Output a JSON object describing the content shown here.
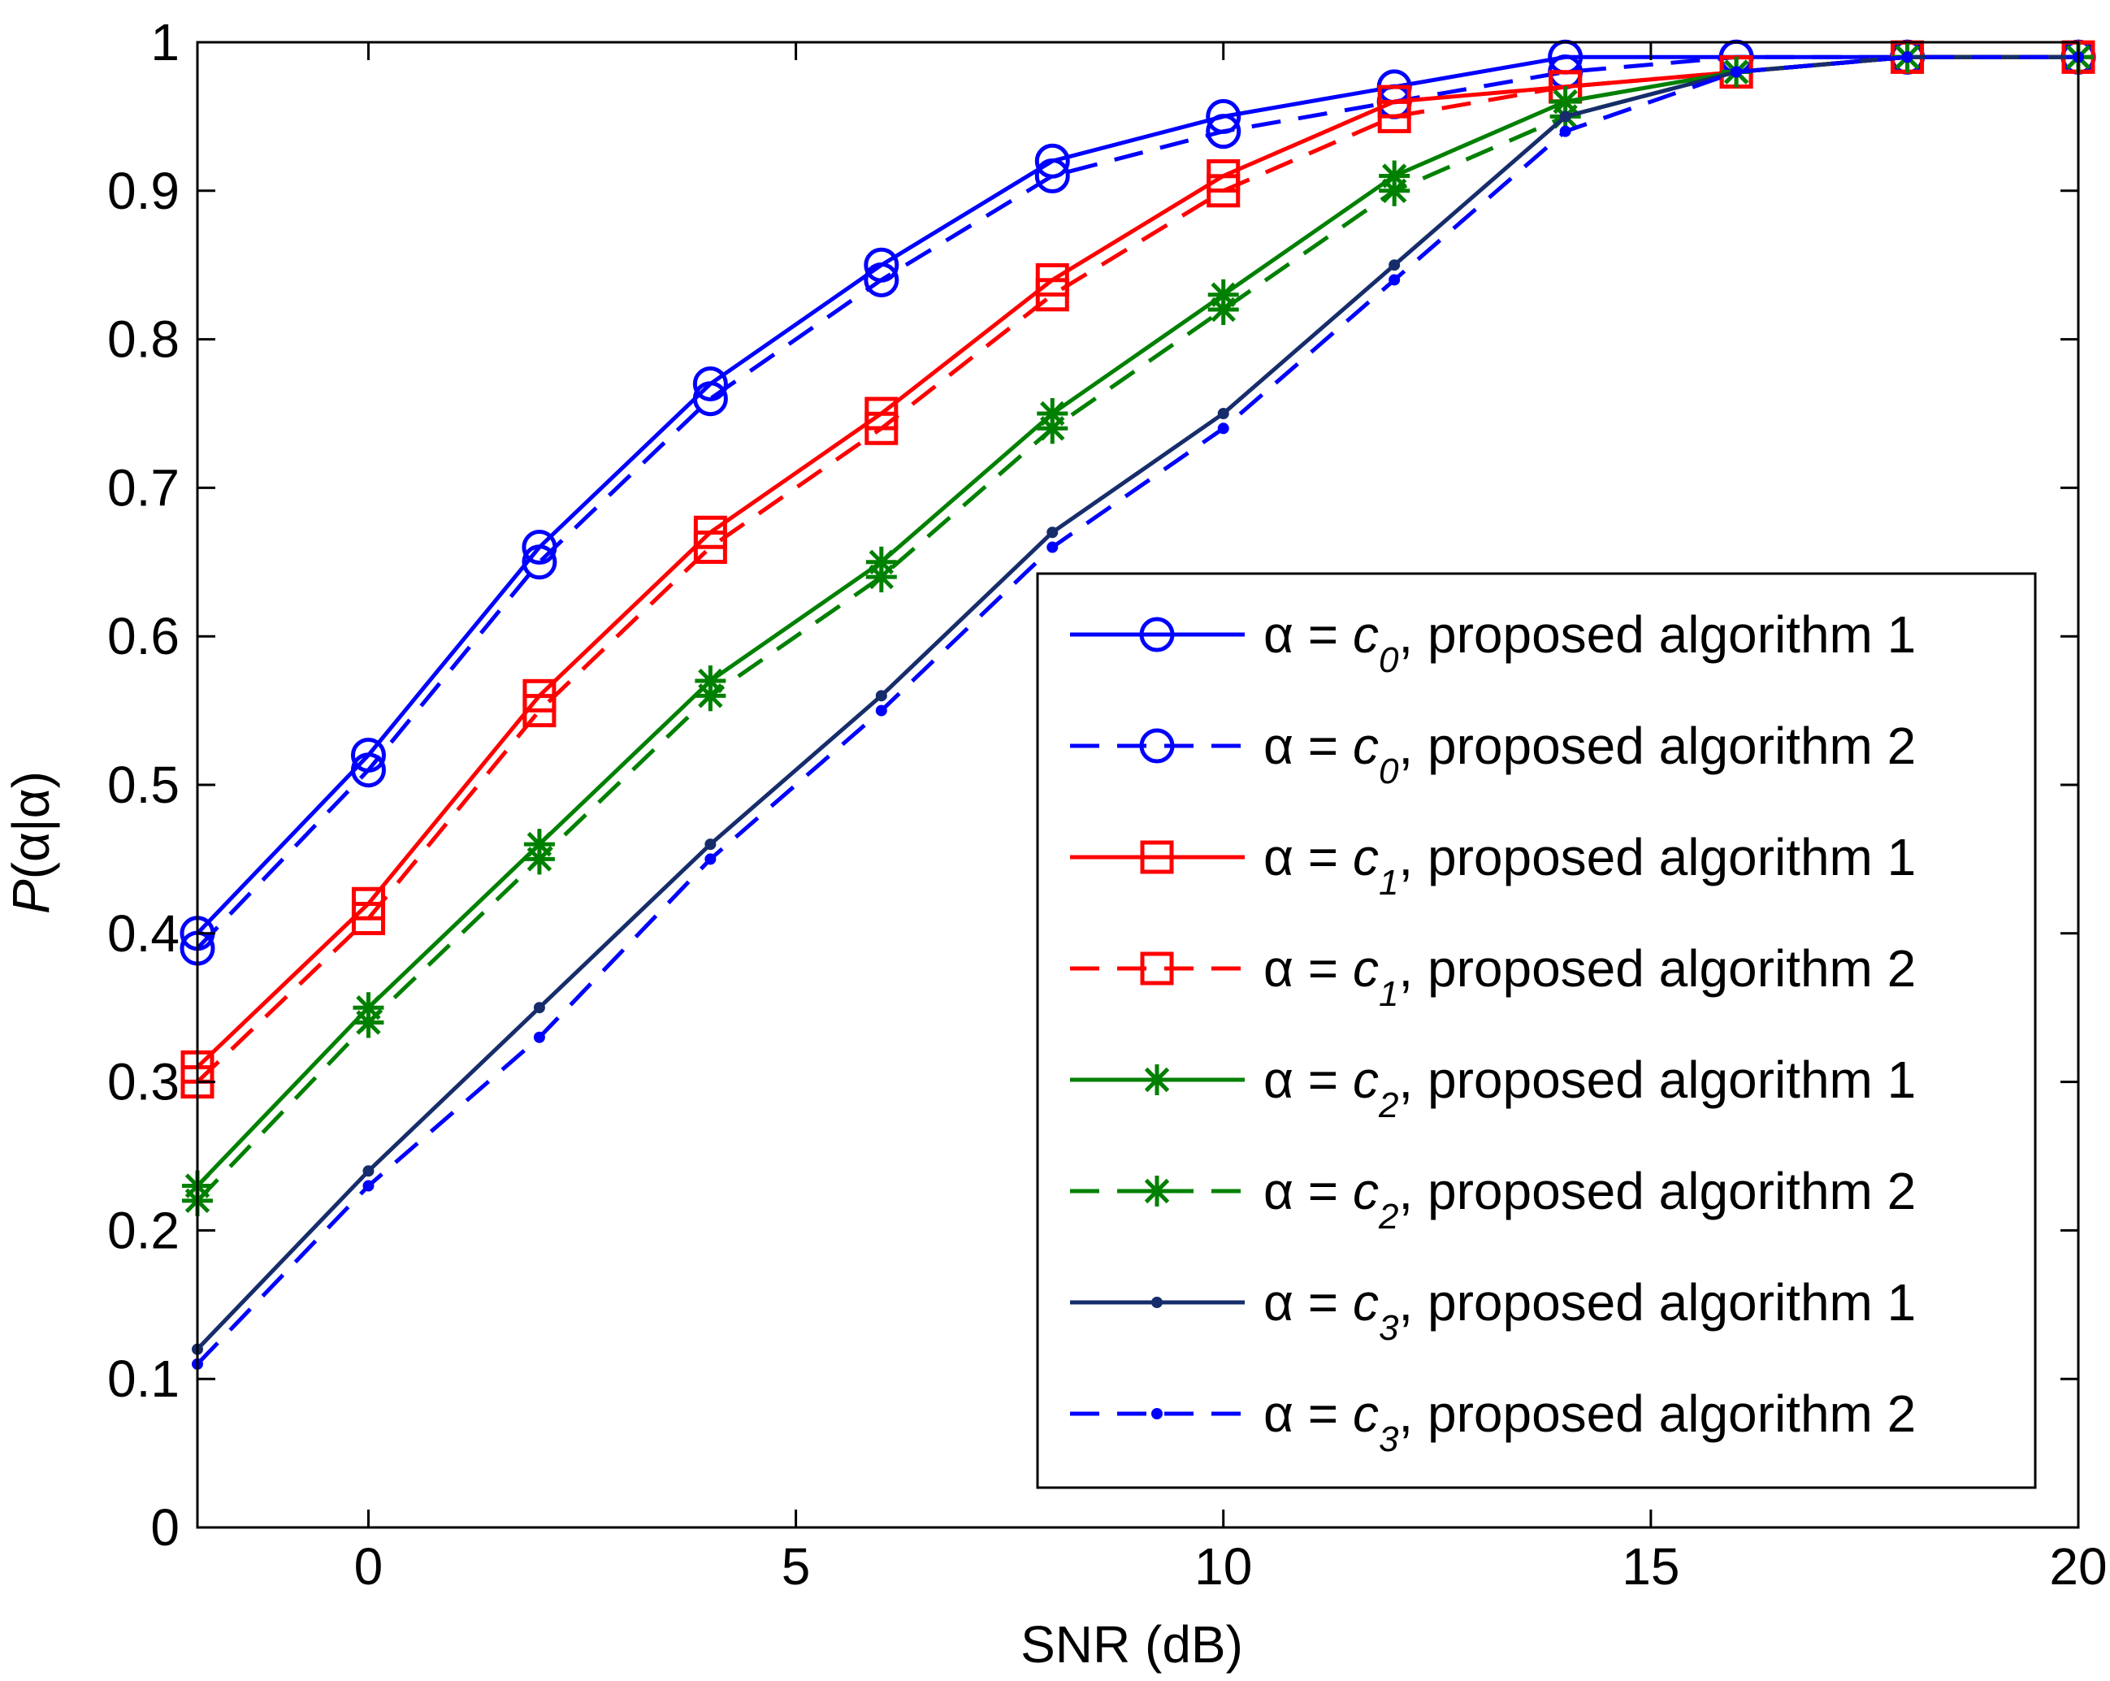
{
  "chart_data": {
    "type": "line",
    "title": "",
    "xlabel": "SNR (dB)",
    "ylabel_italic": "P",
    "ylabel_rest": "(α|α)",
    "xlim": [
      -2,
      20
    ],
    "ylim": [
      0,
      1
    ],
    "xticks": [
      0,
      5,
      10,
      15,
      20
    ],
    "xtick_labels": [
      "0",
      "5",
      "10",
      "15",
      "20"
    ],
    "yticks": [
      0,
      0.1,
      0.2,
      0.3,
      0.4,
      0.5,
      0.6,
      0.7,
      0.8,
      0.9,
      1
    ],
    "ytick_labels": [
      "0",
      "0.1",
      "0.2",
      "0.3",
      "0.4",
      "0.5",
      "0.6",
      "0.7",
      "0.8",
      "0.9",
      "1"
    ],
    "grid": false,
    "legend_position": "bottom-right",
    "x": [
      -2,
      0,
      2,
      4,
      6,
      8,
      10,
      12,
      14,
      16,
      18,
      20
    ],
    "series": [
      {
        "name": "α =  c0, proposed algorithm 1",
        "prefix": "α =  ",
        "var": "c",
        "sub": "0",
        "suffix": ", proposed algorithm 1",
        "color": "#0000ff",
        "dash": "solid",
        "marker": "circle",
        "values": [
          0.4,
          0.52,
          0.66,
          0.77,
          0.85,
          0.92,
          0.95,
          0.97,
          0.99,
          0.99,
          0.99,
          0.99
        ]
      },
      {
        "name": "α =  c0, proposed algorithm 2",
        "prefix": "α =  ",
        "var": "c",
        "sub": "0",
        "suffix": ", proposed algorithm 2",
        "color": "#0000ff",
        "dash": "dashed",
        "marker": "circle",
        "values": [
          0.39,
          0.51,
          0.65,
          0.76,
          0.84,
          0.91,
          0.94,
          0.96,
          0.98,
          0.99,
          0.99,
          0.99
        ]
      },
      {
        "name": "α =  c1, proposed algorithm 1",
        "prefix": "α =  ",
        "var": "c",
        "sub": "1",
        "suffix": ", proposed algorithm 1",
        "color": "#ff0000",
        "dash": "solid",
        "marker": "square",
        "values": [
          0.31,
          0.42,
          0.56,
          0.67,
          0.75,
          0.84,
          0.91,
          0.96,
          0.97,
          0.98,
          0.99,
          0.99
        ]
      },
      {
        "name": "α =  c1, proposed algorithm 2",
        "prefix": "α =  ",
        "var": "c",
        "sub": "1",
        "suffix": ", proposed algorithm 2",
        "color": "#ff0000",
        "dash": "dashed",
        "marker": "square",
        "values": [
          0.3,
          0.41,
          0.55,
          0.66,
          0.74,
          0.83,
          0.9,
          0.95,
          0.97,
          0.98,
          0.99,
          0.99
        ]
      },
      {
        "name": "α =  c2, proposed algorithm 1",
        "prefix": "α =  ",
        "var": "c",
        "sub": "2",
        "suffix": ", proposed algorithm 1",
        "color": "#008000",
        "dash": "solid",
        "marker": "star",
        "values": [
          0.23,
          0.35,
          0.46,
          0.57,
          0.65,
          0.75,
          0.83,
          0.91,
          0.96,
          0.98,
          0.99,
          0.99
        ]
      },
      {
        "name": "α =  c2, proposed algorithm 2",
        "prefix": "α =  ",
        "var": "c",
        "sub": "2",
        "suffix": ", proposed algorithm 2",
        "color": "#008000",
        "dash": "dashed",
        "marker": "star",
        "values": [
          0.22,
          0.34,
          0.45,
          0.56,
          0.64,
          0.74,
          0.82,
          0.9,
          0.95,
          0.98,
          0.99,
          0.99
        ]
      },
      {
        "name": "α =  c3, proposed algorithm 1",
        "prefix": "α =  ",
        "var": "c",
        "sub": "3",
        "suffix": ", proposed algorithm 1",
        "color": "#172d6b",
        "dash": "solid",
        "marker": "dot",
        "values": [
          0.12,
          0.24,
          0.35,
          0.46,
          0.56,
          0.67,
          0.75,
          0.85,
          0.95,
          0.98,
          0.99,
          0.99
        ]
      },
      {
        "name": "α =  c3, proposed algorithm 2",
        "prefix": "α =  ",
        "var": "c",
        "sub": "3",
        "suffix": ", proposed algorithm 2",
        "color": "#0000ff",
        "dash": "dashed",
        "marker": "dot",
        "values": [
          0.11,
          0.23,
          0.33,
          0.45,
          0.55,
          0.66,
          0.74,
          0.84,
          0.94,
          0.98,
          0.99,
          0.99
        ]
      }
    ]
  }
}
